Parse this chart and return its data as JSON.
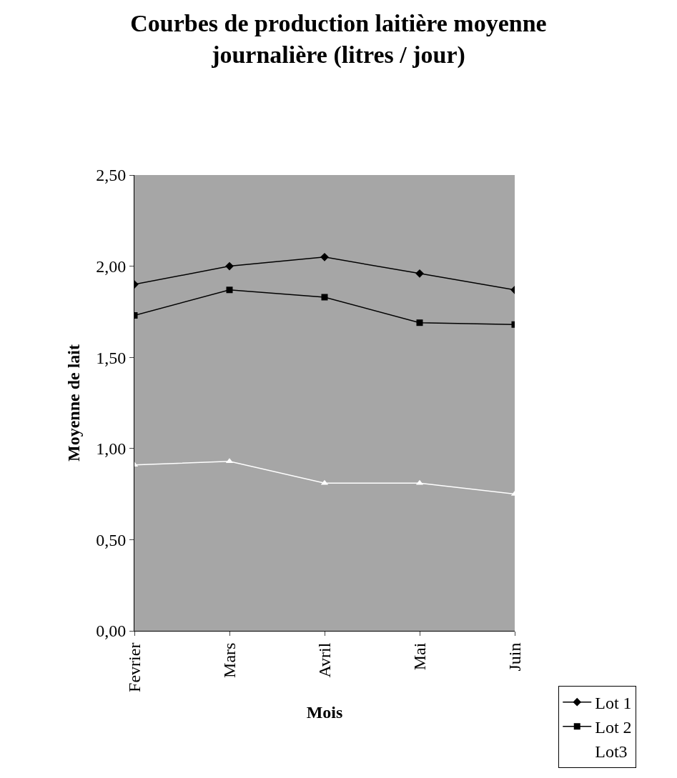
{
  "chart_data": {
    "type": "line",
    "title": "Courbes de production laitière moyenne journalière (litres / jour)",
    "xlabel": "Mois",
    "ylabel": "Moyenne de lait",
    "categories": [
      "Fevrier",
      "Mars",
      "Avril",
      "Mai",
      "Juin"
    ],
    "series": [
      {
        "name": "Lot 1",
        "color": "#000000",
        "marker": "diamond",
        "values": [
          1.9,
          2.0,
          2.05,
          1.96,
          1.87
        ]
      },
      {
        "name": "Lot 2",
        "color": "#000000",
        "marker": "square",
        "values": [
          1.73,
          1.87,
          1.83,
          1.69,
          1.68
        ]
      },
      {
        "name": "Lot3",
        "color": "#ffffff",
        "marker": "triangle",
        "values": [
          0.91,
          0.93,
          0.81,
          0.81,
          0.75
        ]
      }
    ],
    "ylim": [
      0,
      2.5
    ],
    "yticks": [
      {
        "value": 0,
        "label": "0,00"
      },
      {
        "value": 0.5,
        "label": "0,50"
      },
      {
        "value": 1,
        "label": "1,00"
      },
      {
        "value": 1.5,
        "label": "1,50"
      },
      {
        "value": 2,
        "label": "2,00"
      },
      {
        "value": 2.5,
        "label": "2,50"
      }
    ],
    "grid": false,
    "legend": "bottom right",
    "line_style": "solid"
  }
}
